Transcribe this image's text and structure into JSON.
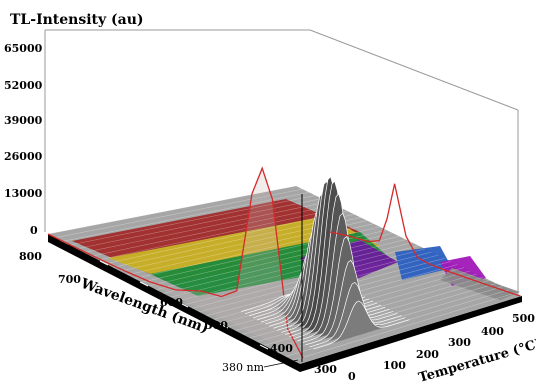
{
  "chart_data": {
    "type": "surface-3d",
    "title": "TL-Intensity (au)",
    "zlabel": "TL-Intensity (au)",
    "z_ticks": [
      "0",
      "13000",
      "26000",
      "39000",
      "52000",
      "65000"
    ],
    "zlim": [
      0,
      65000
    ],
    "ylabel": "Wavelength (nm)",
    "y_ticks": [
      "800",
      "700",
      "600",
      "500",
      "400",
      "300"
    ],
    "ylim": [
      300,
      800
    ],
    "xlabel": "Temperature (°C)",
    "x_ticks": [
      "0",
      "100",
      "200",
      "300",
      "400",
      "500"
    ],
    "xlim": [
      0,
      500
    ],
    "annotation": "380 nm",
    "spectrum_projection": {
      "wavelength": [
        300,
        330,
        360,
        380,
        400,
        430,
        460,
        500,
        550,
        600,
        650,
        700,
        750,
        800
      ],
      "intensity": [
        0,
        2500,
        16500,
        19500,
        16000,
        4000,
        2500,
        2000,
        700,
        200,
        50,
        0,
        0,
        0
      ]
    },
    "glow_curve_projection": {
      "temperature": [
        0,
        50,
        100,
        130,
        150,
        170,
        200,
        230,
        260,
        300,
        400,
        500
      ],
      "intensity": [
        0,
        900,
        1200,
        3000,
        12000,
        26000,
        8000,
        1500,
        600,
        200,
        50,
        0
      ]
    },
    "surface_peak": {
      "wavelength": 380,
      "temperature": 160,
      "intensity": 30000
    }
  }
}
